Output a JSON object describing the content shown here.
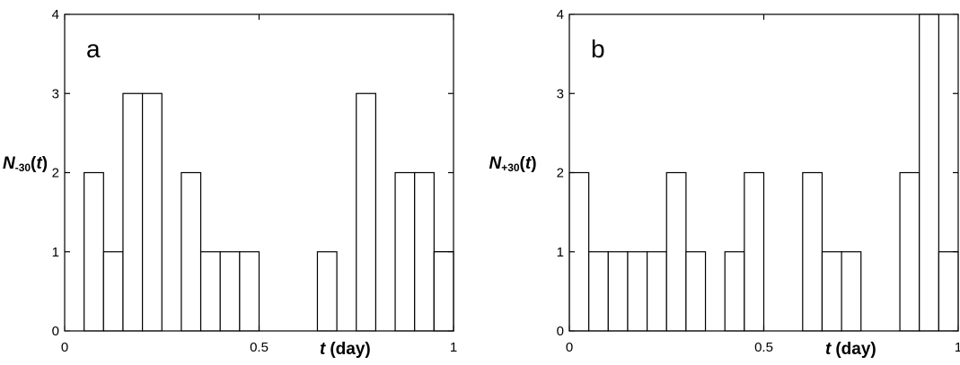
{
  "chart_data": [
    {
      "type": "bar",
      "panel_label": "a",
      "ylabel_main": "N",
      "ylabel_sub": "-30",
      "ylabel_arg": "t",
      "xlabel_var": "t",
      "xlabel_unit": "(day)",
      "bin_width": 0.05,
      "x": [
        0,
        0.05,
        0.1,
        0.15,
        0.2,
        0.25,
        0.3,
        0.35,
        0.4,
        0.45,
        0.5,
        0.55,
        0.6,
        0.65,
        0.7,
        0.75,
        0.8,
        0.85,
        0.9,
        0.95
      ],
      "values": [
        0,
        2,
        1,
        3,
        3,
        0,
        2,
        1,
        1,
        1,
        0,
        0,
        0,
        1,
        0,
        3,
        0,
        2,
        2,
        1
      ],
      "extra_bars": [
        {
          "x": 0.95,
          "width": 0.05,
          "value": 1
        }
      ],
      "xlim": [
        0,
        1
      ],
      "ylim": [
        0,
        4
      ],
      "xticks": [
        0,
        0.5,
        1
      ],
      "xtick_labels": [
        "0",
        "0.5",
        "1"
      ],
      "yticks": [
        0,
        1,
        2,
        3,
        4
      ],
      "ytick_labels": [
        "0",
        "1",
        "2",
        "3",
        "4"
      ]
    },
    {
      "type": "bar",
      "panel_label": "b",
      "ylabel_main": "N",
      "ylabel_sub": "+30",
      "ylabel_arg": "t",
      "xlabel_var": "t",
      "xlabel_unit": "(day)",
      "bin_width": 0.05,
      "x": [
        0,
        0.05,
        0.1,
        0.15,
        0.2,
        0.25,
        0.3,
        0.35,
        0.4,
        0.45,
        0.5,
        0.55,
        0.6,
        0.65,
        0.7,
        0.75,
        0.8,
        0.85,
        0.9,
        0.95
      ],
      "values": [
        2,
        1,
        1,
        1,
        1,
        2,
        1,
        0,
        1,
        2,
        0,
        0,
        2,
        1,
        1,
        0,
        0,
        2,
        4,
        1
      ],
      "xlim": [
        0,
        1
      ],
      "ylim": [
        0,
        4
      ],
      "xticks": [
        0,
        0.5,
        1
      ],
      "xtick_labels": [
        "0",
        "0.5",
        "1"
      ],
      "yticks": [
        0,
        1,
        2,
        3,
        4
      ],
      "ytick_labels": [
        "0",
        "1",
        "2",
        "3",
        "4"
      ]
    }
  ]
}
